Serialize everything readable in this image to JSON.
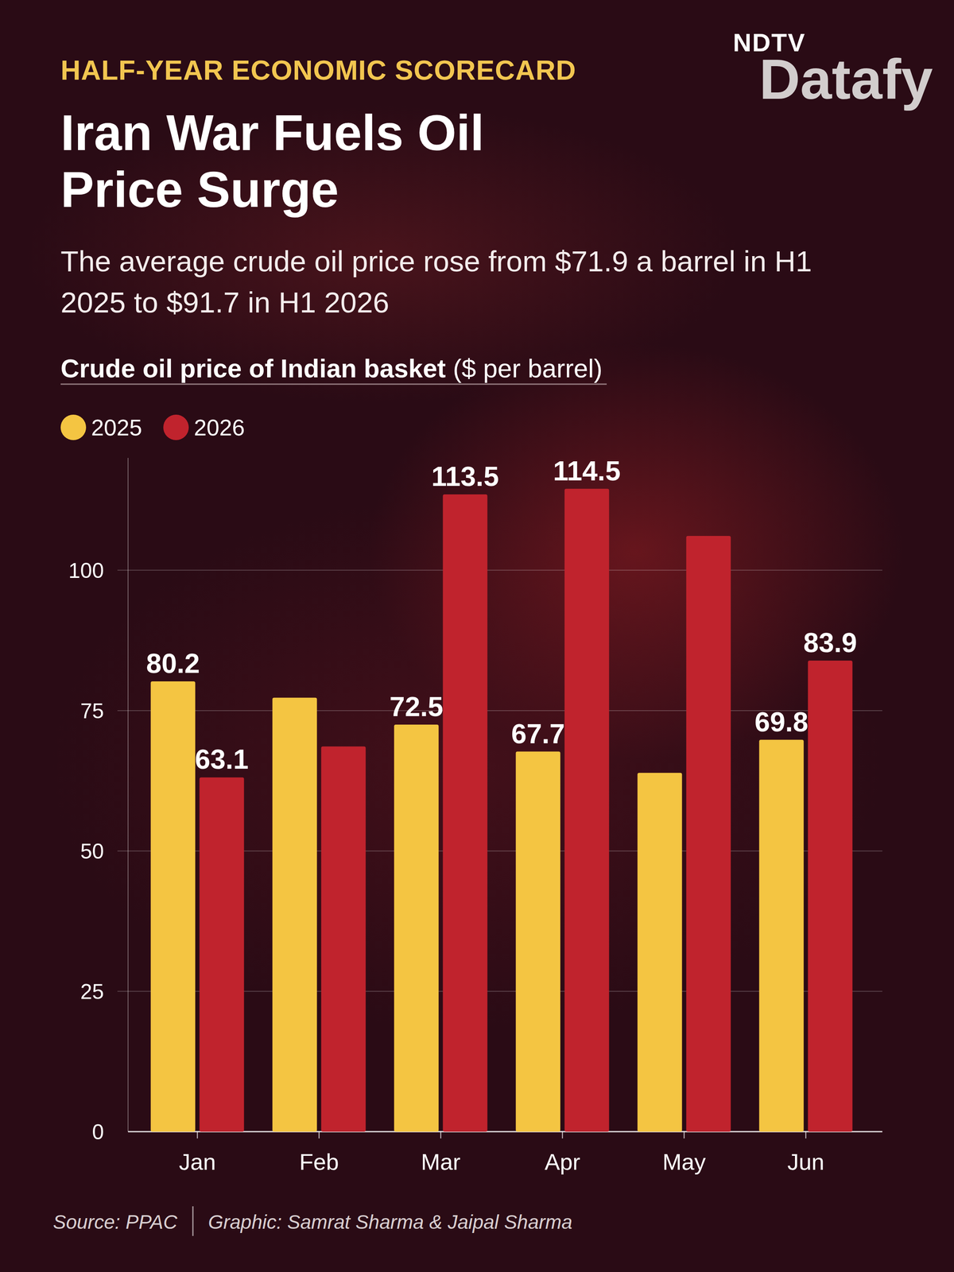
{
  "kicker": "HALF-YEAR ECONOMIC SCORECARD",
  "headline": "Iran War Fuels Oil Price Surge",
  "subtitle": "The average crude oil price rose from $71.9 a barrel in H1 2025 to $91.7 in H1 2026",
  "brand": {
    "top": "NDTV",
    "name": "Datafy"
  },
  "source": "Source: PPAC",
  "credit": "Graphic: Samrat Sharma & Jaipal Sharma",
  "chart_data": {
    "type": "bar",
    "title": "Crude oil price of Indian basket",
    "ylabel": "($ per barrel)",
    "categories": [
      "Jan",
      "Feb",
      "Mar",
      "Apr",
      "May",
      "Jun"
    ],
    "series": [
      {
        "name": "2025",
        "color": "#f4c542",
        "values": [
          80.2,
          77.3,
          72.5,
          67.7,
          63.9,
          69.8
        ],
        "value_labels": [
          "80.2",
          null,
          "72.5",
          "67.7",
          null,
          "69.8"
        ]
      },
      {
        "name": "2026",
        "color": "#c0232d",
        "values": [
          63.1,
          68.6,
          113.5,
          114.5,
          106.1,
          83.9
        ],
        "value_labels": [
          "63.1",
          null,
          "113.5",
          "114.5",
          null,
          "83.9"
        ]
      }
    ],
    "ylim": [
      0,
      120
    ],
    "yticks": [
      0,
      25,
      50,
      75,
      100
    ],
    "grid": true,
    "legend": "top-left",
    "data_labels": true
  }
}
